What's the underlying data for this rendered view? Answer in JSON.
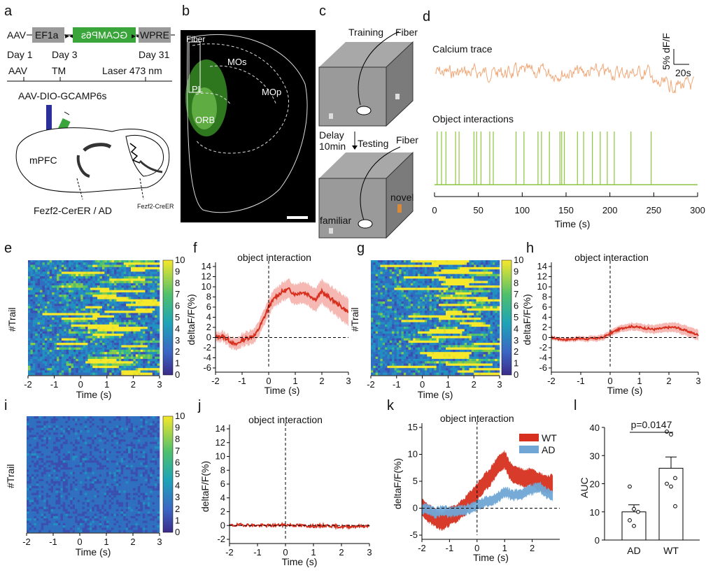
{
  "panel_labels": [
    "a",
    "b",
    "c",
    "d",
    "e",
    "f",
    "g",
    "h",
    "i",
    "j",
    "k",
    "l"
  ],
  "panel_a": {
    "construct": {
      "left": "AAV",
      "promoter": "EF1a",
      "gene": "GCAMP6s",
      "right": "WPRE"
    },
    "timeline": {
      "day1": "Day 1",
      "day3": "Day 3",
      "day31": "Day 31",
      "aav": "AAV",
      "tm": "TM",
      "laser": "Laser 473 nm"
    },
    "virus": "AAV-DIO-GCAMP6s",
    "region": "mPFC",
    "mouse_line": "Fezf2-CerER / AD",
    "mouse_line_sup": "Fezf2-CreER"
  },
  "panel_b": {
    "fiber": "Fiber",
    "regions": [
      "MOs",
      "PL",
      "MOp",
      "ORB"
    ]
  },
  "panel_c": {
    "training": "Training",
    "fiber": "Fiber",
    "delay": "Delay",
    "delay_time": "10min",
    "testing": "Testing",
    "fiber2": "Fiber",
    "novel": "novel",
    "familiar": "familiar"
  },
  "panel_d": {
    "trace_title": "Calcium trace",
    "scale_y": "5% dF/F",
    "scale_x": "20s",
    "events_title": "Object interactions",
    "xlabel": "Time (s)",
    "xticks": [
      "0",
      "50",
      "100",
      "150",
      "200",
      "250",
      "300"
    ],
    "colors": {
      "trace": "#f0a878",
      "events": "#8cc63f"
    }
  },
  "heatmaps": {
    "ylabel": "#Trail",
    "xlabel": "Time (s)",
    "xticks": [
      "-2",
      "-1",
      "0",
      "1",
      "2",
      "3"
    ],
    "cbar_ticks": [
      "0",
      "1",
      "2",
      "3",
      "4",
      "5",
      "6",
      "7",
      "8",
      "9",
      "10"
    ]
  },
  "line_panels": {
    "title": "object interaction",
    "ylabel": "deltaF/F(%)",
    "xlabel": "Time (s)",
    "xticks": [
      "-2",
      "-1",
      "0",
      "1",
      "2",
      "3"
    ],
    "fh_yticks": [
      "-6",
      "-4",
      "-2",
      "0",
      "2",
      "4",
      "6",
      "8",
      "10",
      "12",
      "14"
    ],
    "j_yticks": [
      "-2",
      "0",
      "2",
      "4",
      "6",
      "8",
      "10",
      "12",
      "14"
    ],
    "k_yticks": [
      "-5",
      "0",
      "5",
      "10",
      "15"
    ],
    "k_legend": [
      "WT",
      "AD"
    ],
    "colors": {
      "wt": "#d7301f",
      "ad": "#6fa6d6",
      "band": "#f4a6a0"
    }
  },
  "panel_l": {
    "ylabel": "AUC",
    "pvalue": "p=0.0147",
    "categories": [
      "AD",
      "WT"
    ],
    "yticks": [
      "0",
      "10",
      "20",
      "30",
      "40"
    ]
  },
  "chart_data": [
    {
      "panel": "f",
      "type": "line",
      "title": "object interaction",
      "xlabel": "Time (s)",
      "ylabel": "deltaF/F(%)",
      "xlim": [
        -2,
        3
      ],
      "ylim": [
        -6,
        14
      ],
      "x": [
        -2.0,
        -1.75,
        -1.5,
        -1.25,
        -1.0,
        -0.75,
        -0.5,
        -0.25,
        0.0,
        0.25,
        0.5,
        0.75,
        1.0,
        1.25,
        1.5,
        1.75,
        2.0,
        2.25,
        2.5,
        2.75,
        3.0
      ],
      "series": [
        {
          "values": [
            0,
            0.3,
            -0.5,
            -1.5,
            -0.5,
            0,
            0.5,
            3,
            6,
            8,
            9,
            9.5,
            8.5,
            9,
            8.5,
            7.5,
            9,
            8,
            7,
            6,
            5
          ]
        }
      ]
    },
    {
      "panel": "h",
      "type": "line",
      "title": "object interaction",
      "xlabel": "Time (s)",
      "ylabel": "deltaF/F(%)",
      "xlim": [
        -2,
        3
      ],
      "ylim": [
        -6,
        14
      ],
      "x": [
        -2.0,
        -1.75,
        -1.5,
        -1.25,
        -1.0,
        -0.75,
        -0.5,
        -0.25,
        0.0,
        0.25,
        0.5,
        0.75,
        1.0,
        1.25,
        1.5,
        1.75,
        2.0,
        2.25,
        2.5,
        2.75,
        3.0
      ],
      "series": [
        {
          "values": [
            0,
            -0.3,
            -0.4,
            -0.3,
            -0.2,
            -0.3,
            -0.2,
            0,
            0.8,
            1.5,
            2,
            2.2,
            2,
            1.8,
            1.6,
            1.8,
            2,
            2,
            1.5,
            1,
            0.5
          ]
        }
      ]
    },
    {
      "panel": "j",
      "type": "line",
      "title": "object interaction",
      "xlabel": "Time (s)",
      "ylabel": "deltaF/F(%)",
      "xlim": [
        -2,
        3
      ],
      "ylim": [
        -2,
        14
      ],
      "x": [
        -2.0,
        -1.5,
        -1.0,
        -0.5,
        0.0,
        0.5,
        1.0,
        1.5,
        2.0,
        2.5,
        3.0
      ],
      "series": [
        {
          "values": [
            0,
            0.1,
            0,
            0,
            0.1,
            0,
            -0.1,
            0,
            -0.2,
            -0.1,
            -0.1
          ]
        }
      ]
    },
    {
      "panel": "k",
      "type": "area",
      "title": "object interaction",
      "xlabel": "Time (s)",
      "ylabel": "deltaF/F(%)",
      "xlim": [
        -2,
        3
      ],
      "ylim": [
        -5,
        15
      ],
      "x": [
        -2.0,
        -1.75,
        -1.5,
        -1.25,
        -1.0,
        -0.75,
        -0.5,
        -0.25,
        0.0,
        0.25,
        0.5,
        0.75,
        1.0,
        1.25,
        1.5,
        1.75,
        2.0,
        2.25,
        2.5,
        2.75
      ],
      "series": [
        {
          "name": "WT",
          "values": [
            0,
            -1,
            -2,
            -2.5,
            -1.5,
            -1,
            0,
            1.5,
            3,
            4.5,
            6,
            8,
            9,
            6.5,
            6,
            5.5,
            6,
            5,
            4.5,
            4.5
          ]
        },
        {
          "name": "AD",
          "values": [
            0,
            -0.3,
            -0.8,
            -0.5,
            -0.8,
            -0.5,
            -0.5,
            0,
            0.5,
            1,
            1.5,
            2,
            3,
            2.5,
            2.5,
            3,
            3.5,
            4,
            3,
            2
          ]
        }
      ]
    },
    {
      "panel": "l",
      "type": "bar",
      "ylabel": "AUC",
      "ylim": [
        0,
        40
      ],
      "categories": [
        "AD",
        "WT"
      ],
      "values": [
        10,
        25.5
      ],
      "errors": [
        2.5,
        4
      ],
      "points": [
        [
          19,
          11,
          10,
          7,
          5
        ],
        [
          38.5,
          37.5,
          22,
          20,
          19,
          12
        ]
      ],
      "annotation": "p=0.0147"
    }
  ]
}
